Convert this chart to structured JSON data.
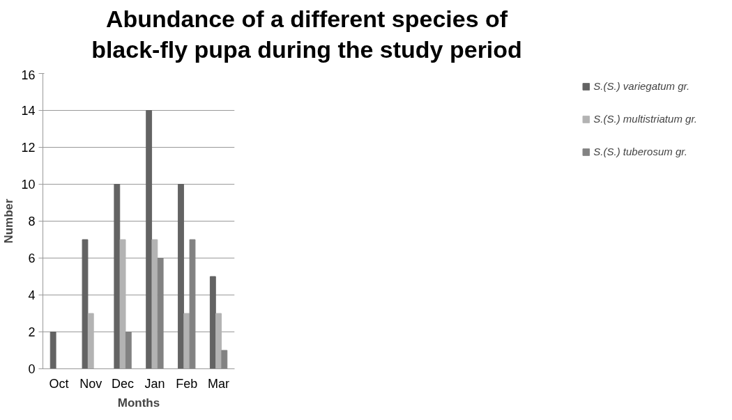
{
  "chart_data": {
    "type": "bar",
    "title": "Abundance of a different species of black-fly pupa during the study period",
    "xlabel": "Months",
    "ylabel": "Number",
    "categories": [
      "Oct",
      "Nov",
      "Dec",
      "Jan",
      "Feb",
      "Mar"
    ],
    "series": [
      {
        "name": "S.(S.) variegatum gr.",
        "color": "#636363",
        "values": [
          2,
          7,
          10,
          14,
          10,
          5
        ]
      },
      {
        "name": "S.(S.) multistriatum gr.",
        "color": "#b3b3b3",
        "values": [
          0,
          3,
          7,
          7,
          3,
          3
        ]
      },
      {
        "name": "S.(S.) tuberosum gr.",
        "color": "#828282",
        "values": [
          0,
          0,
          2,
          6,
          7,
          1
        ]
      }
    ],
    "ylim": [
      0,
      16
    ],
    "yticks": [
      0,
      2,
      4,
      6,
      8,
      10,
      12,
      14,
      16
    ],
    "grid": "y",
    "legend": "right"
  }
}
